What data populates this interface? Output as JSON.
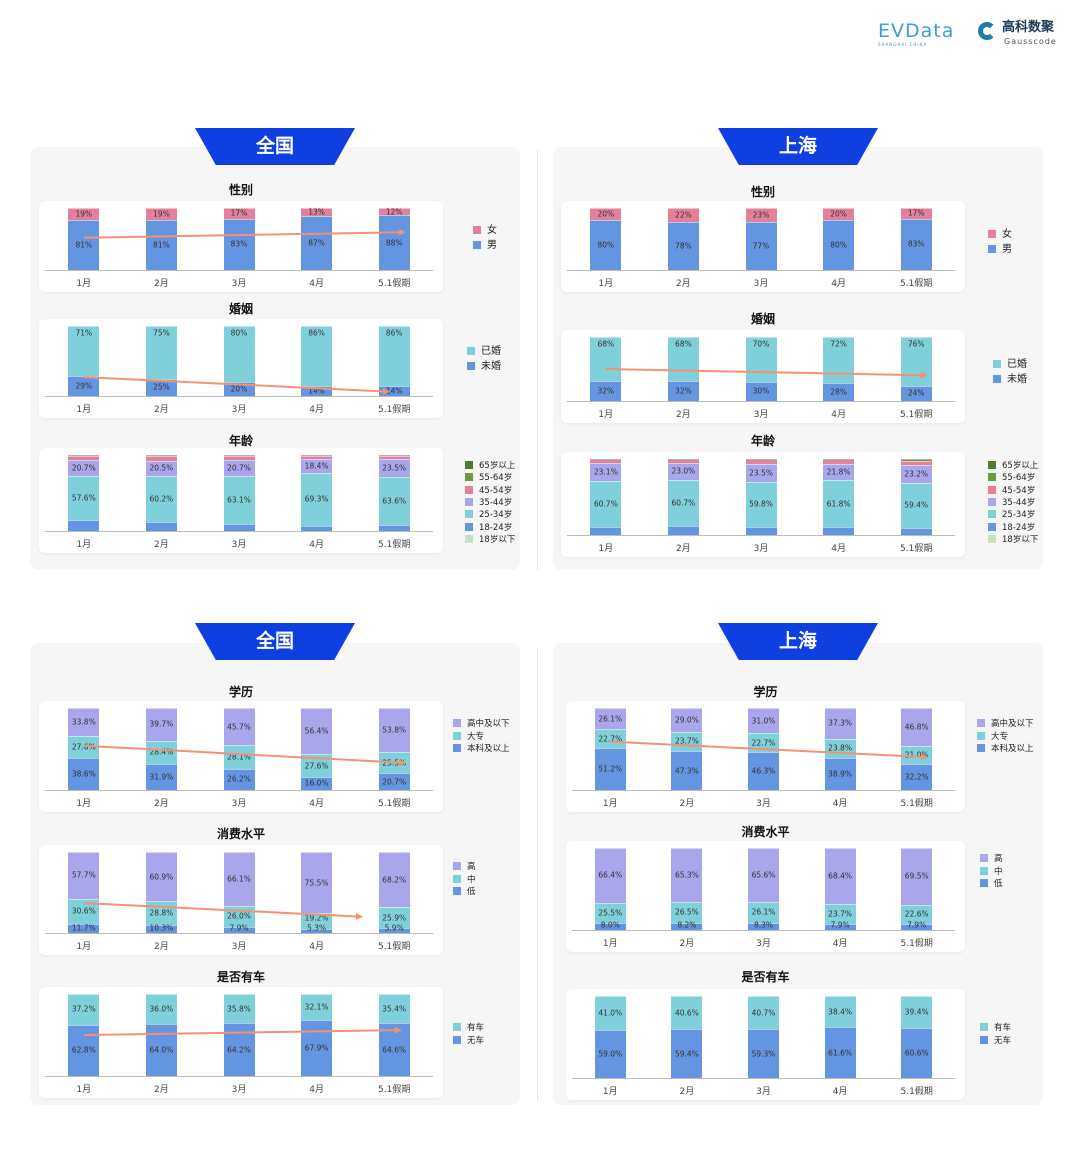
{
  "header": {
    "logo_evdata": "EVData",
    "logo_evdata_sub": "SHANGHAI CHINA",
    "logo_gauss_cn": "高科数聚",
    "logo_gauss_en": "Gausscode"
  },
  "sections": [
    {
      "banner": "全国"
    },
    {
      "banner": "上海"
    },
    {
      "banner": "全国"
    },
    {
      "banner": "上海"
    }
  ],
  "colors": {
    "banner": "#0f3fe0",
    "trend_arrow": "#f4926f",
    "panel_bg": "#f6f6f6"
  },
  "chart_data": [
    {
      "id": "nat-gender",
      "region": "全国",
      "type": "bar",
      "stacked": true,
      "title": "性别",
      "categories": [
        "1月",
        "2月",
        "3月",
        "4月",
        "5.1假期"
      ],
      "decimals": 0,
      "trend_arrow": true,
      "series": [
        {
          "name": "男",
          "color": "#6495e0",
          "labeled": true,
          "values": [
            81,
            81,
            83,
            87,
            88
          ]
        },
        {
          "name": "女",
          "color": "#e5809a",
          "labeled": true,
          "values": [
            19,
            19,
            17,
            13,
            12
          ]
        }
      ]
    },
    {
      "id": "nat-marriage",
      "region": "全国",
      "type": "bar",
      "stacked": true,
      "title": "婚姻",
      "categories": [
        "1月",
        "2月",
        "3月",
        "4月",
        "5.1假期"
      ],
      "decimals": 0,
      "trend_arrow": true,
      "series": [
        {
          "name": "未婚",
          "color": "#6495e0",
          "labeled": true,
          "values": [
            29,
            25,
            20,
            14,
            14
          ]
        },
        {
          "name": "已婚",
          "color": "#7fd0da",
          "labeled": true,
          "values": [
            71,
            75,
            80,
            86,
            86
          ]
        }
      ]
    },
    {
      "id": "nat-age",
      "region": "全国",
      "type": "bar",
      "stacked": true,
      "title": "年龄",
      "categories": [
        "1月",
        "2月",
        "3月",
        "4月",
        "5.1假期"
      ],
      "decimals": 1,
      "trend_arrow": false,
      "series": [
        {
          "name": "18岁以下",
          "color": "#c9e0c2",
          "labeled": false,
          "values": [
            0,
            0,
            0,
            0,
            0
          ]
        },
        {
          "name": "18-24岁",
          "color": "#6495e0",
          "labeled": false,
          "values": [
            14.5,
            11.9,
            9.5,
            6.8,
            7.5
          ]
        },
        {
          "name": "25-34岁",
          "color": "#7fd0da",
          "labeled": true,
          "values": [
            57.6,
            60.2,
            63.1,
            69.3,
            63.6
          ]
        },
        {
          "name": "35-44岁",
          "color": "#a9a6ec",
          "labeled": true,
          "values": [
            20.7,
            20.5,
            20.7,
            18.4,
            23.5
          ]
        },
        {
          "name": "45-54岁",
          "color": "#e5809a",
          "labeled": false,
          "values": [
            6.2,
            6.5,
            5.8,
            4.8,
            4.5
          ]
        },
        {
          "name": "55-64岁",
          "color": "#6a9a3c",
          "labeled": false,
          "values": [
            0.8,
            0.7,
            0.7,
            0.6,
            0.7
          ]
        },
        {
          "name": "65岁以上",
          "color": "#4f7a32",
          "labeled": false,
          "values": [
            0.2,
            0.2,
            0.2,
            0.1,
            0.2
          ]
        }
      ]
    },
    {
      "id": "sh-gender",
      "region": "上海",
      "type": "bar",
      "stacked": true,
      "title": "性别",
      "categories": [
        "1月",
        "2月",
        "3月",
        "4月",
        "5.1假期"
      ],
      "decimals": 0,
      "trend_arrow": false,
      "series": [
        {
          "name": "男",
          "color": "#6495e0",
          "labeled": true,
          "values": [
            80,
            78,
            77,
            80,
            83
          ]
        },
        {
          "name": "女",
          "color": "#e5809a",
          "labeled": true,
          "values": [
            20,
            22,
            23,
            20,
            17
          ]
        }
      ]
    },
    {
      "id": "sh-marriage",
      "region": "上海",
      "type": "bar",
      "stacked": true,
      "title": "婚姻",
      "categories": [
        "1月",
        "2月",
        "3月",
        "4月",
        "5.1假期"
      ],
      "decimals": 0,
      "trend_arrow": true,
      "series": [
        {
          "name": "未婚",
          "color": "#6495e0",
          "labeled": true,
          "values": [
            32,
            32,
            30,
            28,
            24
          ]
        },
        {
          "name": "已婚",
          "color": "#7fd0da",
          "labeled": true,
          "values": [
            68,
            68,
            70,
            72,
            76
          ]
        }
      ]
    },
    {
      "id": "sh-age",
      "region": "上海",
      "type": "bar",
      "stacked": true,
      "title": "年龄",
      "categories": [
        "1月",
        "2月",
        "3月",
        "4月",
        "5.1假期"
      ],
      "decimals": 1,
      "trend_arrow": false,
      "series": [
        {
          "name": "18岁以下",
          "color": "#c9e0c2",
          "labeled": false,
          "values": [
            0,
            0,
            0,
            0,
            0
          ]
        },
        {
          "name": "18-24岁",
          "color": "#6495e0",
          "labeled": false,
          "values": [
            10.5,
            11.5,
            10.5,
            10.0,
            9.4
          ]
        },
        {
          "name": "25-34岁",
          "color": "#7fd0da",
          "labeled": true,
          "values": [
            60.7,
            60.7,
            59.8,
            61.8,
            59.4
          ]
        },
        {
          "name": "35-44岁",
          "color": "#a9a6ec",
          "labeled": true,
          "values": [
            23.1,
            23.0,
            23.5,
            21.8,
            23.2
          ]
        },
        {
          "name": "45-54岁",
          "color": "#e5809a",
          "labeled": false,
          "values": [
            5.2,
            4.3,
            5.6,
            5.8,
            6.0
          ]
        },
        {
          "name": "55-64岁",
          "color": "#6a9a3c",
          "labeled": false,
          "values": [
            0.4,
            0.4,
            0.5,
            0.5,
            1.5
          ]
        },
        {
          "name": "65岁以上",
          "color": "#4f7a32",
          "labeled": false,
          "values": [
            0.1,
            0.1,
            0.1,
            0.1,
            0.5
          ]
        }
      ]
    },
    {
      "id": "nat-edu",
      "region": "全国",
      "type": "bar",
      "stacked": true,
      "title": "学历",
      "categories": [
        "1月",
        "2月",
        "3月",
        "4月",
        "5.1假期"
      ],
      "decimals": 1,
      "trend_arrow": true,
      "series": [
        {
          "name": "本科及以上",
          "color": "#6495e0",
          "labeled": true,
          "values": [
            38.6,
            31.9,
            26.2,
            16.0,
            20.7
          ]
        },
        {
          "name": "大专",
          "color": "#7fd0da",
          "labeled": true,
          "values": [
            27.6,
            28.4,
            28.1,
            27.6,
            25.5
          ]
        },
        {
          "name": "高中及以下",
          "color": "#a9a6ec",
          "labeled": true,
          "values": [
            33.8,
            39.7,
            45.7,
            56.4,
            53.8
          ]
        }
      ]
    },
    {
      "id": "nat-consumption",
      "region": "全国",
      "type": "bar",
      "stacked": true,
      "title": "消费水平",
      "categories": [
        "1月",
        "2月",
        "3月",
        "4月",
        "5.1假期"
      ],
      "decimals": 1,
      "trend_arrow": true,
      "series": [
        {
          "name": "低",
          "color": "#6495e0",
          "labeled": true,
          "values": [
            11.7,
            10.3,
            7.9,
            5.3,
            5.9
          ]
        },
        {
          "name": "中",
          "color": "#7fd0da",
          "labeled": true,
          "values": [
            30.6,
            28.8,
            26.0,
            19.2,
            25.9
          ]
        },
        {
          "name": "高",
          "color": "#a9a6ec",
          "labeled": true,
          "values": [
            57.7,
            60.9,
            66.1,
            75.5,
            68.2
          ]
        }
      ]
    },
    {
      "id": "nat-car",
      "region": "全国",
      "type": "bar",
      "stacked": true,
      "title": "是否有车",
      "categories": [
        "1月",
        "2月",
        "3月",
        "4月",
        "5.1假期"
      ],
      "decimals": 1,
      "trend_arrow": true,
      "series": [
        {
          "name": "无车",
          "color": "#6495e0",
          "labeled": true,
          "values": [
            62.8,
            64.0,
            64.2,
            67.9,
            64.6
          ]
        },
        {
          "name": "有车",
          "color": "#7fd0da",
          "labeled": true,
          "values": [
            37.2,
            36.0,
            35.8,
            32.1,
            35.4
          ]
        }
      ]
    },
    {
      "id": "sh-edu",
      "region": "上海",
      "type": "bar",
      "stacked": true,
      "title": "学历",
      "categories": [
        "1月",
        "2月",
        "3月",
        "4月",
        "5.1假期"
      ],
      "decimals": 1,
      "trend_arrow": true,
      "series": [
        {
          "name": "本科及以上",
          "color": "#6495e0",
          "labeled": true,
          "values": [
            51.2,
            47.3,
            46.3,
            38.9,
            32.2
          ]
        },
        {
          "name": "大专",
          "color": "#7fd0da",
          "labeled": true,
          "values": [
            22.7,
            23.7,
            22.7,
            23.8,
            21.0
          ]
        },
        {
          "name": "高中及以下",
          "color": "#a9a6ec",
          "labeled": true,
          "values": [
            26.1,
            29.0,
            31.0,
            37.3,
            46.8
          ]
        }
      ]
    },
    {
      "id": "sh-consumption",
      "region": "上海",
      "type": "bar",
      "stacked": true,
      "title": "消费水平",
      "categories": [
        "1月",
        "2月",
        "3月",
        "4月",
        "5.1假期"
      ],
      "decimals": 1,
      "trend_arrow": false,
      "series": [
        {
          "name": "低",
          "color": "#6495e0",
          "labeled": true,
          "values": [
            8.0,
            8.2,
            8.3,
            7.9,
            7.9
          ]
        },
        {
          "name": "中",
          "color": "#7fd0da",
          "labeled": true,
          "values": [
            25.5,
            26.5,
            26.1,
            23.7,
            22.6
          ]
        },
        {
          "name": "高",
          "color": "#a9a6ec",
          "labeled": true,
          "values": [
            66.4,
            65.3,
            65.6,
            68.4,
            69.5
          ]
        }
      ]
    },
    {
      "id": "sh-car",
      "region": "上海",
      "type": "bar",
      "stacked": true,
      "title": "是否有车",
      "categories": [
        "1月",
        "2月",
        "3月",
        "4月",
        "5.1假期"
      ],
      "decimals": 1,
      "trend_arrow": false,
      "series": [
        {
          "name": "无车",
          "color": "#6495e0",
          "labeled": true,
          "values": [
            59.0,
            59.4,
            59.3,
            61.6,
            60.6
          ]
        },
        {
          "name": "有车",
          "color": "#7fd0da",
          "labeled": true,
          "values": [
            41.0,
            40.6,
            40.7,
            38.4,
            39.4
          ]
        }
      ]
    }
  ]
}
